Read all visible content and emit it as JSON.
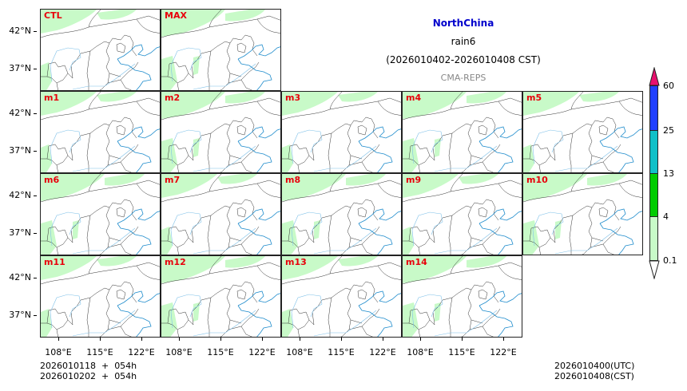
{
  "header": {
    "region": "NorthChina",
    "variable": "rain6",
    "period": "(2026010402-2026010408 CST)",
    "model": "CMA-REPS",
    "region_color": "#0000cc",
    "model_color": "#888888"
  },
  "panels": [
    {
      "label": "CTL",
      "row": 0,
      "col": 0
    },
    {
      "label": "MAX",
      "row": 0,
      "col": 1
    },
    {
      "label": "m1",
      "row": 1,
      "col": 0
    },
    {
      "label": "m2",
      "row": 1,
      "col": 1
    },
    {
      "label": "m3",
      "row": 1,
      "col": 2
    },
    {
      "label": "m4",
      "row": 1,
      "col": 3
    },
    {
      "label": "m5",
      "row": 1,
      "col": 4
    },
    {
      "label": "m6",
      "row": 2,
      "col": 0
    },
    {
      "label": "m7",
      "row": 2,
      "col": 1
    },
    {
      "label": "m8",
      "row": 2,
      "col": 2
    },
    {
      "label": "m9",
      "row": 2,
      "col": 3
    },
    {
      "label": "m10",
      "row": 2,
      "col": 4
    },
    {
      "label": "m11",
      "row": 3,
      "col": 0
    },
    {
      "label": "m12",
      "row": 3,
      "col": 1
    },
    {
      "label": "m13",
      "row": 3,
      "col": 2
    },
    {
      "label": "m14",
      "row": 3,
      "col": 3
    }
  ],
  "axes": {
    "y_ticks": [
      "42°N",
      "37°N"
    ],
    "x_ticks": [
      "108°E",
      "115°E",
      "122°E"
    ]
  },
  "colorbar": {
    "levels": [
      "0.1",
      "4",
      "13",
      "25",
      "60"
    ],
    "colors": [
      "#c8fac8",
      "#00cc00",
      "#10c0c8",
      "#2040ff",
      "#e8106e"
    ],
    "under_color": "#ffffff"
  },
  "footer": {
    "init_line1": "2026010118  +  054h",
    "init_line2": "2026010202  +  054h",
    "valid_utc": "2026010400(UTC)",
    "valid_cst": "2026010408(CST)"
  }
}
